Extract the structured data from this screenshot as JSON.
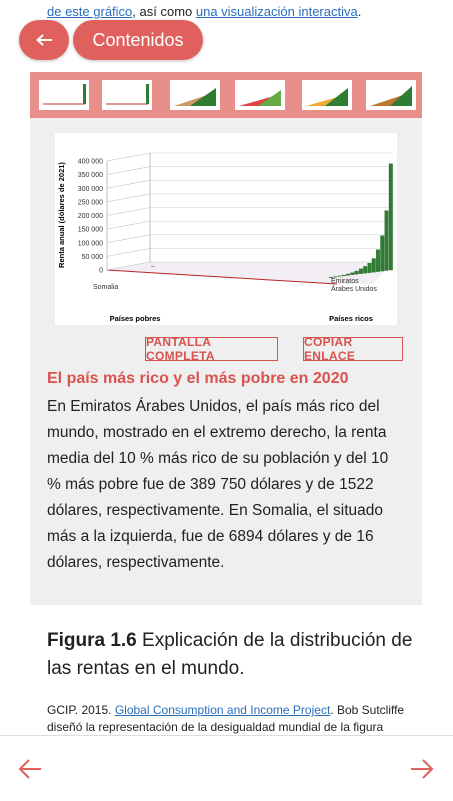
{
  "top_text": {
    "prefix": "de este gráfico",
    "middle": ", así como ",
    "link": "una visualización interactiva",
    "suffix": "."
  },
  "nav": {
    "contents": "Contenidos"
  },
  "chart_data": {
    "type": "bar",
    "y_label": "Renta anual (dólares de 2021)",
    "x_label_left": "Países pobres",
    "x_label_right": "Países ricos",
    "categories": [
      "Somalia",
      null,
      null,
      null,
      null,
      null,
      null,
      null,
      null,
      null,
      null,
      null,
      null,
      null,
      null,
      "Emiratos Árabes Unidos"
    ],
    "values": [
      16,
      500,
      1000,
      2000,
      3000,
      5000,
      8000,
      12000,
      18000,
      25000,
      35000,
      50000,
      80000,
      130000,
      220000,
      389750
    ],
    "color": "#2e7d32",
    "ylim": [
      0,
      400000
    ],
    "yticks": [
      0,
      {
        "value": 50000,
        "label": "50 000"
      },
      {
        "value": 100000,
        "label": "100 000"
      },
      {
        "value": 150000,
        "label": "150 000"
      },
      {
        "value": 200000,
        "label": "200 000"
      },
      {
        "value": 250000,
        "label": "250 000"
      },
      {
        "value": 300000,
        "label": "300 000"
      },
      {
        "value": 350000,
        "label": "350 000"
      },
      {
        "value": 400000,
        "label": "400 000"
      }
    ],
    "grid": true
  },
  "buttons": {
    "fullscreen": "PANTALLA COMPLETA",
    "copy_link": "COPIAR ENLACE"
  },
  "heading": "El país más rico y el más pobre en 2020",
  "paragraph": "En Emiratos Árabes Unidos, el país más rico del mundo, mostrado en el extremo derecho, la renta media del 10 % más rico de su población y del 10 % más pobre fue de 389 750 dólares y de 1522 dólares, respectivamente. En Somalia, el situado más a la izquierda, fue de 6894 dólares y de 16 dólares, respectivamente.",
  "figure": {
    "label": "Figura 1.6",
    "text": "Explicación de la distribución de las rentas en el mundo."
  },
  "source": {
    "prefix": "GCIP. 2015. ",
    "link": "Global Consumption and Income Project",
    "suffix": ". Bob Sutcliffe diseñó la representación de la desigualdad mundial de la figura"
  }
}
